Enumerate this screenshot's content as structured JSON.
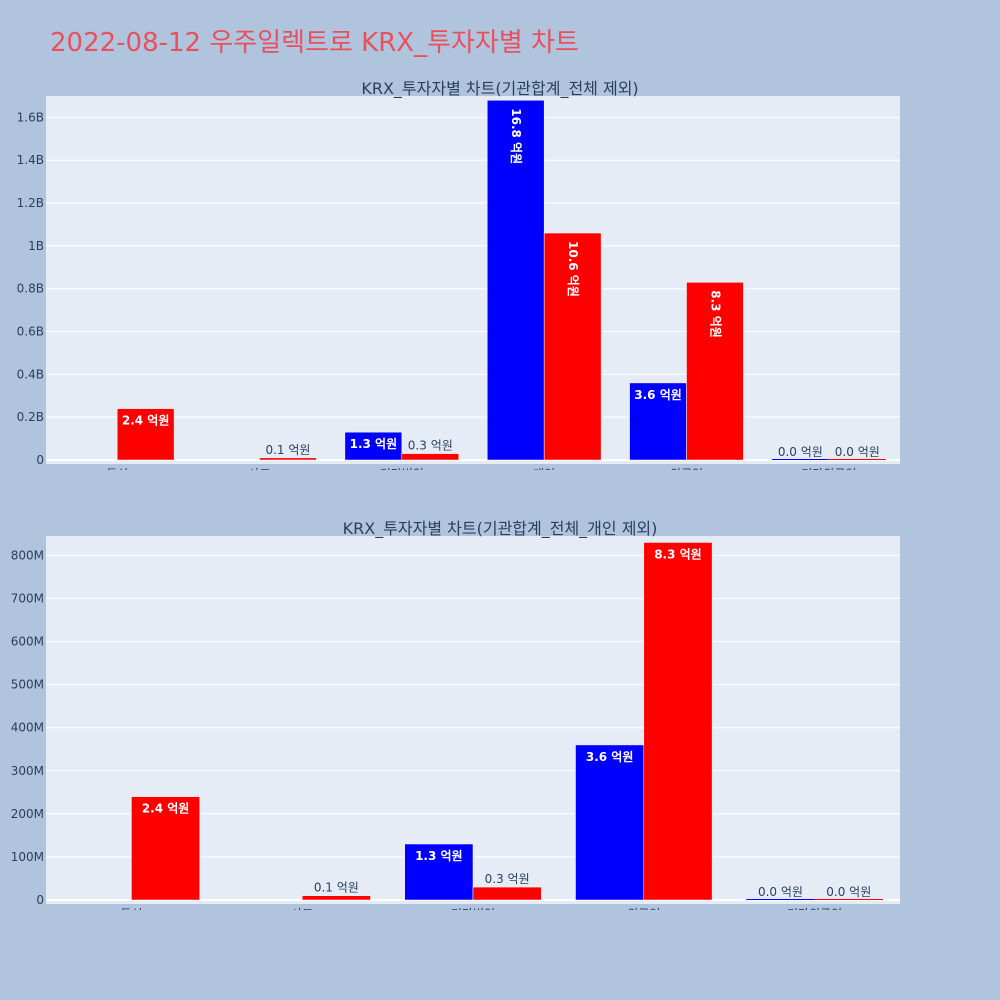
{
  "title": "2022-08-12 우주일렉트로 KRX_투자자별 차트",
  "colors": {
    "background": "#b0c4de",
    "plot_bg": "#e5ecf6",
    "title": "#e8515c",
    "buy": "#0000ff",
    "sell": "#ff0000"
  },
  "chart_data": [
    {
      "type": "bar",
      "title": "KRX_투자자별 차트(기관합계_전체 제외)",
      "categories": [
        "투신",
        "사모",
        "기타법인",
        "개인",
        "외국인",
        "기타외국인"
      ],
      "series": [
        {
          "color": "#0000ff",
          "values": [
            0,
            0,
            130000000,
            1680000000,
            360000000,
            0
          ],
          "labels": [
            "",
            "",
            "1.3 억원",
            "16.8 억원",
            "3.6 억원",
            "0.0 억원"
          ]
        },
        {
          "color": "#ff0000",
          "values": [
            240000000,
            10000000,
            30000000,
            1060000000,
            830000000,
            0
          ],
          "labels": [
            "2.4 억원",
            "0.1 억원",
            "0.3 억원",
            "10.6 억원",
            "8.3 억원",
            "0.0 억원"
          ]
        }
      ],
      "ylim": [
        0,
        1700000000
      ],
      "yticks": [
        0,
        200000000,
        400000000,
        600000000,
        800000000,
        1000000000,
        1200000000,
        1400000000,
        1600000000
      ],
      "ytick_labels": [
        "0",
        "0.2B",
        "0.4B",
        "0.6B",
        "0.8B",
        "1B",
        "1.2B",
        "1.4B",
        "1.6B"
      ],
      "grid": true
    },
    {
      "type": "bar",
      "title": "KRX_투자자별 차트(기관합계_전체_개인 제외)",
      "categories": [
        "투신",
        "사모",
        "기타법인",
        "외국인",
        "기타외국인"
      ],
      "series": [
        {
          "color": "#0000ff",
          "values": [
            0,
            0,
            130000000,
            360000000,
            0
          ],
          "labels": [
            "",
            "",
            "1.3 억원",
            "3.6 억원",
            "0.0 억원"
          ]
        },
        {
          "color": "#ff0000",
          "values": [
            240000000,
            10000000,
            30000000,
            830000000,
            0
          ],
          "labels": [
            "2.4 억원",
            "0.1 억원",
            "0.3 억원",
            "8.3 억원",
            "0.0 억원"
          ]
        }
      ],
      "ylim": [
        0,
        845000000
      ],
      "yticks": [
        0,
        100000000,
        200000000,
        300000000,
        400000000,
        500000000,
        600000000,
        700000000,
        800000000
      ],
      "ytick_labels": [
        "0",
        "100M",
        "200M",
        "300M",
        "400M",
        "500M",
        "600M",
        "700M",
        "800M"
      ],
      "grid": true
    }
  ]
}
